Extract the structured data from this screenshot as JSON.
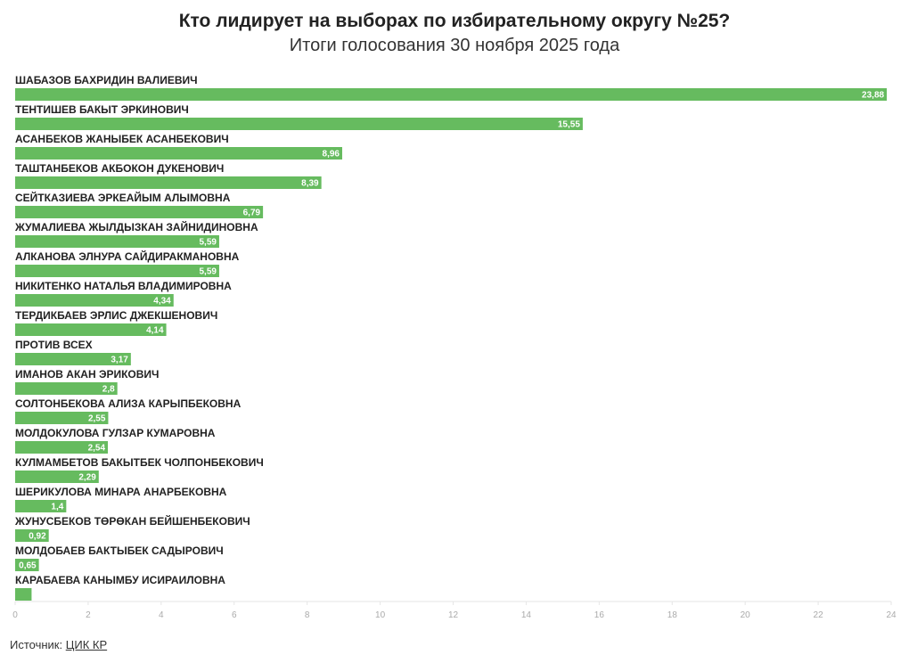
{
  "header": {
    "title": "Кто лидирует на выборах по избирательному округу №25?",
    "subtitle": "Итоги голосования 30 ноября 2025 года"
  },
  "footer": {
    "source_label": "Источник:",
    "source_link": "ЦИК КР"
  },
  "colors": {
    "bar": "#66bb5f",
    "axis": "#e6e6e6",
    "tick_text": "#aaaaaa"
  },
  "chart_data": {
    "type": "bar",
    "orientation": "horizontal",
    "categories": [
      "ШАБАЗОВ БАХРИДИН ВАЛИЕВИЧ",
      "ТЕНТИШЕВ БАКЫТ ЭРКИНОВИЧ",
      "АСАНБЕКОВ ЖАНЫБЕК АСАНБЕКОВИЧ",
      "ТАШТАНБЕКОВ АКБОКОН ДУКЕНОВИЧ",
      "СЕЙТКАЗИЕВА ЭРКЕАЙЫМ АЛЫМОВНА",
      "ЖУМАЛИЕВА ЖЫЛДЫЗКАН ЗАЙНИДИНОВНА",
      "АЛКАНОВА ЭЛНУРА САЙДИРАКМАНОВНА",
      "НИКИТЕНКО НАТАЛЬЯ ВЛАДИМИРОВНА",
      "ТЕРДИКБАЕВ ЭРЛИС ДЖЕКШЕНОВИЧ",
      "ПРОТИВ ВСЕХ",
      "ИМАНОВ АКАН ЭРИКОВИЧ",
      "СОЛТОНБЕКОВА АЛИЗА КАРЫПБЕКОВНА",
      "МОЛДОКУЛОВА ГУЛЗАР КУМАРОВНА",
      "КУЛМАМБЕТОВ БАКЫТБЕК ЧОЛПОНБЕКОВИЧ",
      "ШЕРИКУЛОВА МИНАРА АНАРБЕКОВНА",
      "ЖУНУСБЕКОВ ТӨРӨКАН БЕЙШЕНБЕКОВИЧ",
      "МОЛДОБАЕВ БАКТЫБЕК САДЫРОВИЧ",
      "КАРАБАЕВА КАНЫМБУ ИСИРАИЛОВНА"
    ],
    "values": [
      23.88,
      15.55,
      8.96,
      8.39,
      6.79,
      5.59,
      5.59,
      4.34,
      4.14,
      3.17,
      2.8,
      2.55,
      2.54,
      2.29,
      1.4,
      0.92,
      0.65,
      0.45
    ],
    "value_labels": [
      "23,88",
      "15,55",
      "8,96",
      "8,39",
      "6,79",
      "5,59",
      "5,59",
      "4,34",
      "4,14",
      "3,17",
      "2,8",
      "2,55",
      "2,54",
      "2,29",
      "1,4",
      "0,92",
      "0,65",
      ""
    ],
    "title": "Кто лидирует на выборах по избирательному округу №25?",
    "subtitle": "Итоги голосования 30 ноября 2025 года",
    "xlabel": "",
    "ylabel": "",
    "xlim": [
      0,
      24
    ],
    "xticks": [
      0,
      2,
      4,
      6,
      8,
      10,
      12,
      14,
      16,
      18,
      20,
      22,
      24
    ],
    "grid": false,
    "legend": "none"
  }
}
